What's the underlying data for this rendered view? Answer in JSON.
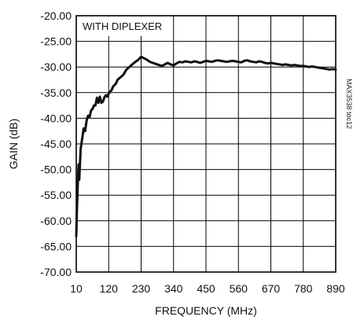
{
  "chart_data": {
    "type": "line",
    "title": "",
    "xlabel": "FREQUENCY (MHz)",
    "ylabel": "GAIN (dB)",
    "xlim": [
      10,
      890
    ],
    "ylim": [
      -70,
      -20
    ],
    "x_ticks": [
      "10",
      "120",
      "230",
      "340",
      "450",
      "560",
      "670",
      "780",
      "890"
    ],
    "y_ticks": [
      "-20.00",
      "-25.00",
      "-30.00",
      "-35.00",
      "-40.00",
      "-45.00",
      "-50.00",
      "-55.00",
      "-60.00",
      "-65.00",
      "-70.00"
    ],
    "grid": true,
    "annotation": "WITH DIPLEXER",
    "figure_id": "MAX3538 toc12",
    "series": [
      {
        "x": [
          10,
          12,
          15,
          18,
          20,
          25,
          30,
          35,
          40,
          45,
          50,
          55,
          60,
          65,
          70,
          75,
          80,
          85,
          90,
          95,
          100,
          105,
          110,
          115,
          120,
          125,
          130,
          135,
          140,
          145,
          150,
          160,
          170,
          180,
          190,
          200,
          210,
          220,
          230,
          240,
          250,
          260,
          270,
          280,
          290,
          300,
          310,
          320,
          330,
          340,
          350,
          360,
          370,
          380,
          390,
          400,
          410,
          420,
          430,
          440,
          450,
          460,
          470,
          480,
          490,
          500,
          510,
          520,
          530,
          540,
          550,
          560,
          570,
          580,
          590,
          600,
          610,
          620,
          630,
          640,
          650,
          660,
          670,
          680,
          690,
          700,
          710,
          720,
          730,
          740,
          750,
          760,
          770,
          780,
          790,
          800,
          810,
          820,
          830,
          840,
          850,
          860,
          870,
          880,
          890
        ],
        "values": [
          -63,
          -58,
          -53,
          -49,
          -52,
          -46,
          -44,
          -42,
          -42.5,
          -40.5,
          -39.5,
          -39.8,
          -38.5,
          -38.2,
          -37.5,
          -37.5,
          -36,
          -37,
          -35.8,
          -37,
          -36.8,
          -36,
          -35.5,
          -35.8,
          -35.2,
          -34.8,
          -34.5,
          -33.8,
          -33.5,
          -33.2,
          -32.5,
          -32,
          -31.5,
          -30.5,
          -30,
          -29.5,
          -29,
          -28.6,
          -28,
          -28.3,
          -28.6,
          -29,
          -29.2,
          -29.4,
          -29.6,
          -29.8,
          -29.5,
          -29.2,
          -29.5,
          -29.7,
          -29.3,
          -29,
          -29.1,
          -28.9,
          -29,
          -29.1,
          -28.9,
          -29,
          -29.2,
          -29,
          -28.8,
          -28.9,
          -29,
          -28.8,
          -28.7,
          -28.8,
          -28.9,
          -29,
          -28.9,
          -28.8,
          -28.9,
          -29,
          -29.1,
          -28.8,
          -28.7,
          -28.9,
          -29,
          -29.1,
          -28.9,
          -29,
          -29.2,
          -29.3,
          -29.2,
          -29.3,
          -29.4,
          -29.5,
          -29.6,
          -29.5,
          -29.6,
          -29.7,
          -29.6,
          -29.7,
          -29.8,
          -29.8,
          -29.9,
          -30,
          -29.9,
          -30,
          -30.1,
          -30.2,
          -30.3,
          -30.4,
          -30.5,
          -30.4,
          -30.5
        ]
      }
    ]
  }
}
